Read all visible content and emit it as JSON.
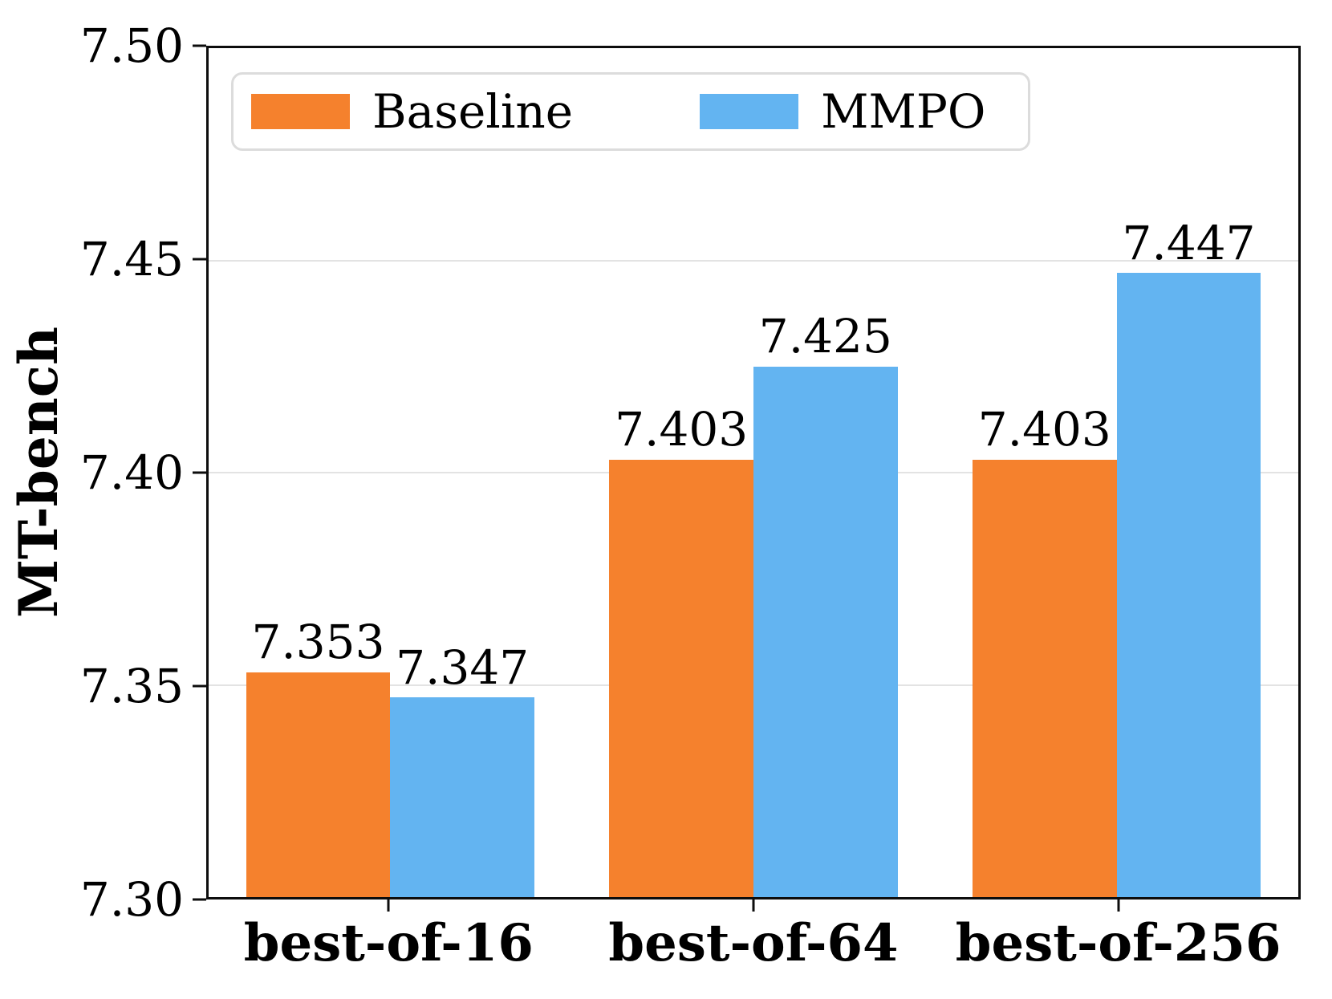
{
  "chart_data": {
    "type": "bar",
    "title": "",
    "xlabel": "",
    "ylabel": "MT-bench",
    "categories": [
      "best-of-16",
      "best-of-64",
      "best-of-256"
    ],
    "series": [
      {
        "name": "Baseline",
        "color": "#f5812d",
        "values": [
          7.353,
          7.403,
          7.403
        ]
      },
      {
        "name": "MMPO",
        "color": "#63b4f1",
        "values": [
          7.347,
          7.425,
          7.447
        ]
      }
    ],
    "value_label_decimals": 3,
    "ylim": [
      7.3,
      7.5
    ],
    "yticks": [
      "7.30",
      "7.35",
      "7.40",
      "7.45",
      "7.50"
    ],
    "ytick_values": [
      7.3,
      7.35,
      7.4,
      7.45,
      7.5
    ],
    "gridlines": [
      7.35,
      7.4,
      7.45
    ],
    "grid": "horizontal",
    "legend_position": "upper-left",
    "colors": {
      "grid": "#e3e3e3",
      "spine": "#0d0d0d",
      "legend_border": "#dcdcdc",
      "text": "#000000",
      "background": "#ffffff"
    }
  }
}
